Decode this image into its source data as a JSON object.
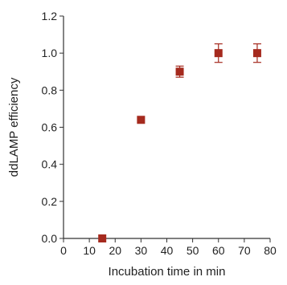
{
  "chart_data": {
    "type": "scatter",
    "xlabel": "Incubation time in min",
    "ylabel": "ddLAMP efficiency",
    "xlim": [
      0,
      80
    ],
    "ylim": [
      0,
      1.2
    ],
    "xticks": [
      "0",
      "10",
      "20",
      "30",
      "40",
      "50",
      "60",
      "70",
      "80"
    ],
    "yticks": [
      "0.0",
      "0.2",
      "0.4",
      "0.6",
      "0.8",
      "1.0",
      "1.2"
    ],
    "grid": false,
    "marker": "square",
    "color": "#a52a1e",
    "points": [
      {
        "x": 15,
        "y": 0.0,
        "err": 0.0
      },
      {
        "x": 30,
        "y": 0.64,
        "err": 0.0
      },
      {
        "x": 45,
        "y": 0.9,
        "err": 0.03
      },
      {
        "x": 60,
        "y": 1.0,
        "err": 0.05
      },
      {
        "x": 75,
        "y": 1.0,
        "err": 0.05
      }
    ]
  }
}
